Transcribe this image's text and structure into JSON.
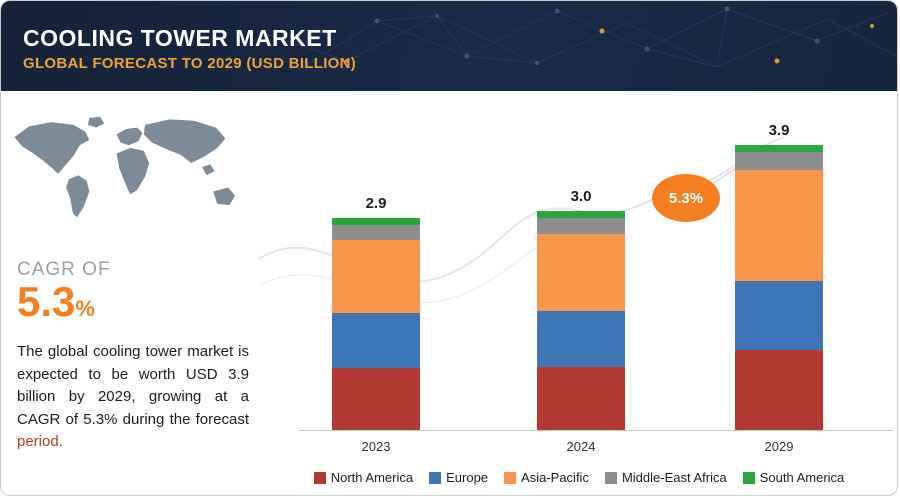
{
  "header": {
    "title": "COOLING TOWER MARKET",
    "subtitle": "GLOBAL FORECAST TO 2029 (USD BILLION)"
  },
  "sidebar": {
    "cagr_label": "CAGR OF",
    "cagr_value": "5.3",
    "cagr_percent": "%",
    "description": "The global cooling tower market is expected to be worth USD 3.9 billion by 2029, growing at a CAGR of 5.3% during the forecast ",
    "description_highlight": "period."
  },
  "chart_data": {
    "type": "bar",
    "stacked": true,
    "title": "Cooling Tower Market, Global Forecast to 2029 (USD Billion)",
    "categories": [
      "2023",
      "2024",
      "2029"
    ],
    "totals": [
      2.9,
      3.0,
      3.9
    ],
    "series": [
      {
        "name": "North America",
        "color": "#b03a32",
        "values": [
          0.85,
          0.86,
          1.09
        ]
      },
      {
        "name": "Europe",
        "color": "#3e76b5",
        "values": [
          0.75,
          0.77,
          0.95
        ]
      },
      {
        "name": "Asia-Pacific",
        "color": "#f9964b",
        "values": [
          1.0,
          1.05,
          1.52
        ]
      },
      {
        "name": "Middle-East Africa",
        "color": "#8e8e8e",
        "values": [
          0.2,
          0.22,
          0.24
        ]
      },
      {
        "name": "South America",
        "color": "#2aa63c",
        "values": [
          0.1,
          0.1,
          0.1
        ]
      }
    ],
    "annotation": "5.3%",
    "ylim": [
      0,
      4.2
    ],
    "grid": false,
    "legend_position": "bottom"
  }
}
